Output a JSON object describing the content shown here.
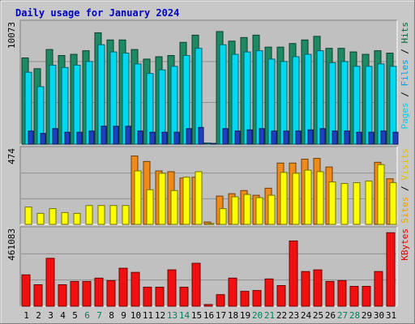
{
  "chart_data": {
    "type": "bar",
    "title": "Daily usage for January 2024",
    "days": [
      "1",
      "2",
      "3",
      "4",
      "5",
      "6",
      "7",
      "8",
      "9",
      "10",
      "11",
      "12",
      "13",
      "14",
      "15",
      "16",
      "17",
      "18",
      "19",
      "20",
      "21",
      "22",
      "23",
      "24",
      "25",
      "26",
      "27",
      "28",
      "29",
      "30",
      "31"
    ],
    "weekend_days": [
      "6",
      "7",
      "13",
      "14",
      "20",
      "21",
      "27",
      "28"
    ],
    "panels": [
      {
        "id": "hits",
        "max_label": "10073",
        "ymax": 10073,
        "legend": [
          "Pages",
          "Files",
          "Hits"
        ],
        "legend_colors": [
          "#00d0e0",
          "#00a0e0",
          "#006838"
        ],
        "series": [
          {
            "name": "Hits",
            "color": "#1e8a64",
            "values": [
              7200,
              6300,
              7900,
              7400,
              7500,
              7800,
              9300,
              8700,
              8700,
              7900,
              7100,
              7300,
              7400,
              8500,
              9100,
              100,
              9400,
              8600,
              8900,
              9100,
              8100,
              8100,
              8400,
              8700,
              9000,
              8000,
              8000,
              7700,
              7500,
              7800,
              7600
            ]
          },
          {
            "name": "Files",
            "color": "#00d8f0",
            "values": [
              6000,
              4800,
              6600,
              6400,
              6600,
              6900,
              8300,
              7700,
              7600,
              6700,
              5900,
              6200,
              6500,
              7400,
              8000,
              50,
              8300,
              7500,
              7700,
              7800,
              7100,
              6900,
              7300,
              7500,
              7800,
              6800,
              6900,
              6500,
              6500,
              6700,
              6500
            ]
          },
          {
            "name": "Pages",
            "color": "#1f3fc0",
            "values": [
              1100,
              900,
              1300,
              1000,
              1000,
              1100,
              1500,
              1500,
              1500,
              1100,
              1000,
              1000,
              1000,
              1300,
              1400,
              20,
              1300,
              1100,
              1200,
              1300,
              1100,
              1100,
              1100,
              1200,
              1300,
              1100,
              1100,
              1000,
              1000,
              1100,
              1000
            ]
          }
        ]
      },
      {
        "id": "visits",
        "max_label": "474",
        "ymax": 474,
        "legend": [
          "Sites",
          "Visits"
        ],
        "legend_colors": [
          "#f0a000",
          "#e0c000"
        ],
        "series": [
          {
            "name": "Visits",
            "color": "#f08a18",
            "values": [
              0,
              0,
              0,
              0,
              0,
              0,
              0,
              0,
              0,
              435,
              400,
              340,
              335,
              295,
              300,
              15,
              180,
              195,
              215,
              185,
              230,
              390,
              390,
              415,
              420,
              365,
              0,
              0,
              0,
              395,
              290
            ]
          },
          {
            "name": "Sites",
            "color": "#ffff00",
            "values": [
              110,
              70,
              100,
              75,
              70,
              120,
              120,
              120,
              120,
              340,
              220,
              325,
              215,
              300,
              335,
              5,
              100,
              175,
              190,
              170,
              185,
              330,
              325,
              345,
              335,
              270,
              260,
              265,
              275,
              380,
              265
            ]
          }
        ]
      },
      {
        "id": "kbytes",
        "max_label": "461083",
        "ymax": 461083,
        "legend": [
          "KBytes"
        ],
        "legend_colors": [
          "#e00000"
        ],
        "series": [
          {
            "name": "KBytes",
            "color": "#f01010",
            "values": [
              190000,
              130000,
              290000,
              130000,
              150000,
              150000,
              170000,
              155000,
              230000,
              205000,
              115000,
              115000,
              220000,
              115000,
              260000,
              10000,
              70000,
              170000,
              90000,
              95000,
              165000,
              125000,
              395000,
              210000,
              220000,
              150000,
              155000,
              120000,
              120000,
              210000,
              445000
            ]
          }
        ]
      }
    ]
  }
}
